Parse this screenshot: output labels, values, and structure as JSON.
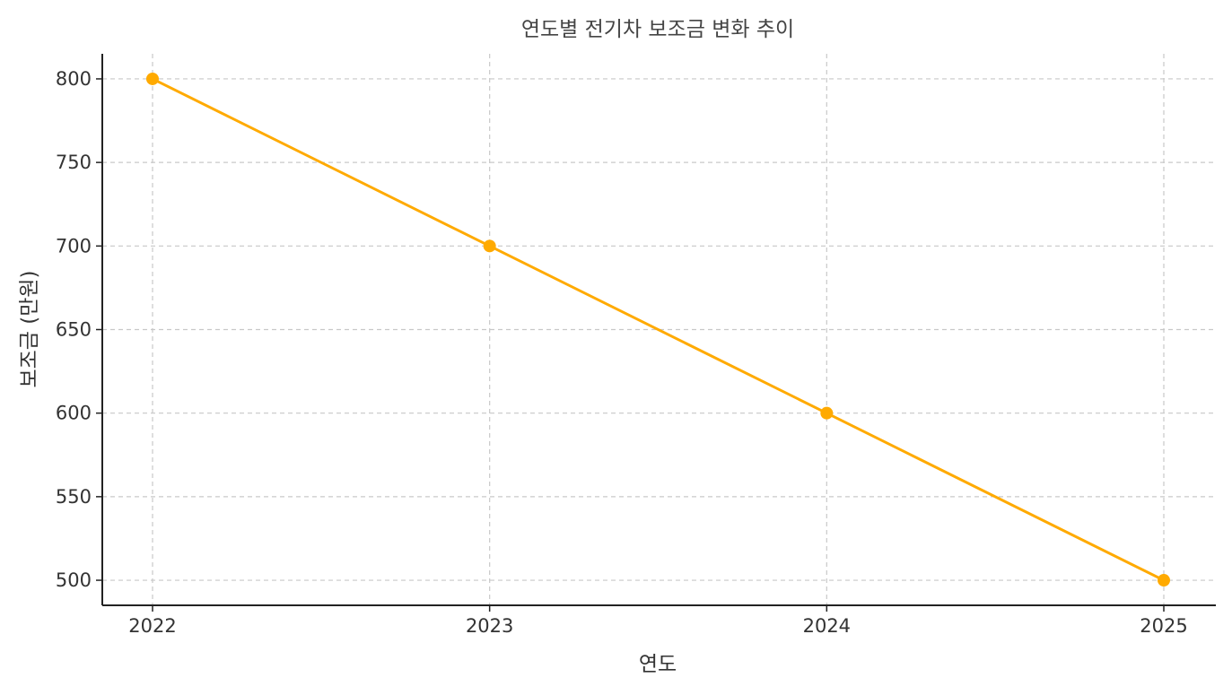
{
  "chart_data": {
    "type": "line",
    "title": "연도별 전기차 보조금 변화 추이",
    "xlabel": "연도",
    "ylabel": "보조금 (만원)",
    "categories": [
      "2022",
      "2023",
      "2024",
      "2025"
    ],
    "series": [
      {
        "name": "",
        "values": [
          800,
          700,
          600,
          500
        ],
        "color": "#FFAA00"
      }
    ],
    "ylim": [
      485,
      815
    ],
    "yticks": [
      500,
      550,
      600,
      650,
      700,
      750,
      800
    ],
    "ytick_labels": [
      "500",
      "550",
      "600",
      "650",
      "700",
      "750",
      "800"
    ],
    "grid": true,
    "grid_style": "dashed",
    "grid_color": "#C8C8C8",
    "axis_color": "#222222",
    "marker": "circle",
    "legend": "none"
  }
}
